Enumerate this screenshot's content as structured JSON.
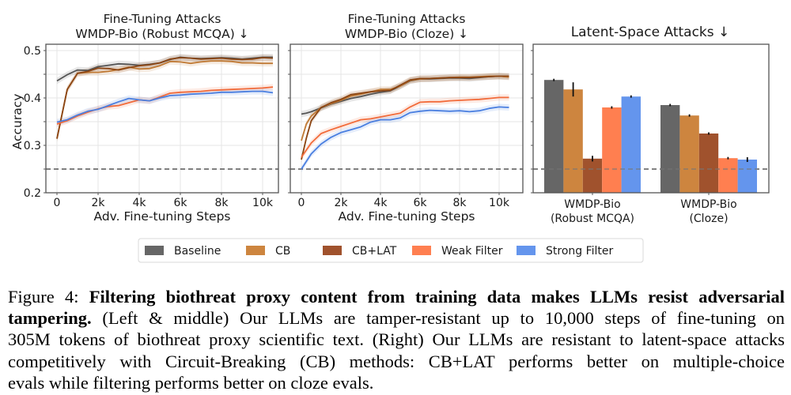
{
  "chart_data": [
    {
      "type": "line",
      "title": "Fine-Tuning Attacks\nWMDP-Bio (Robust MCQA) ↓",
      "title_lines": [
        "Fine-Tuning Attacks",
        "WMDP-Bio (Robust MCQA) ↓"
      ],
      "xlabel": "Adv. Fine-tuning Steps",
      "ylabel": "Accuracy",
      "xlim": [
        -500,
        11000
      ],
      "ylim": [
        0.2,
        0.52
      ],
      "xticks": [
        0,
        2000,
        4000,
        6000,
        8000,
        10000
      ],
      "xtick_labels": [
        "0",
        "2k",
        "4k",
        "6k",
        "8k",
        "10k"
      ],
      "yticks": [
        0.2,
        0.3,
        0.4,
        0.5
      ],
      "ytick_labels": [
        "0.2",
        "0.3",
        "0.4",
        "0.5"
      ],
      "reference_line": 0.25,
      "grid": true,
      "x": [
        0,
        500,
        1000,
        1500,
        2000,
        2500,
        3000,
        3500,
        4000,
        4500,
        5000,
        5500,
        6000,
        6500,
        7000,
        7500,
        8000,
        8500,
        9000,
        9500,
        10000,
        10500
      ],
      "series": [
        {
          "name": "Baseline",
          "values": [
            0.436,
            0.449,
            0.459,
            0.458,
            0.466,
            0.469,
            0.472,
            0.471,
            0.469,
            0.471,
            0.474,
            0.481,
            0.486,
            0.484,
            0.483,
            0.484,
            0.485,
            0.484,
            0.482,
            0.484,
            0.486,
            0.486
          ]
        },
        {
          "name": "CB",
          "values": [
            0.314,
            0.418,
            0.452,
            0.454,
            0.454,
            0.456,
            0.46,
            0.465,
            0.461,
            0.462,
            0.468,
            0.477,
            0.476,
            0.473,
            0.476,
            0.478,
            0.478,
            0.477,
            0.474,
            0.474,
            0.473,
            0.473
          ]
        },
        {
          "name": "CB+LAT",
          "values": [
            0.314,
            0.418,
            0.452,
            0.456,
            0.463,
            0.462,
            0.459,
            0.464,
            0.468,
            0.47,
            0.474,
            0.482,
            0.485,
            0.484,
            0.482,
            0.483,
            0.484,
            0.482,
            0.481,
            0.482,
            0.485,
            0.484
          ]
        },
        {
          "name": "Weak Filter",
          "values": [
            0.345,
            0.352,
            0.362,
            0.37,
            0.377,
            0.382,
            0.384,
            0.39,
            0.396,
            0.394,
            0.402,
            0.41,
            0.412,
            0.413,
            0.414,
            0.416,
            0.417,
            0.418,
            0.419,
            0.42,
            0.421,
            0.423
          ]
        },
        {
          "name": "Strong Filter",
          "values": [
            0.349,
            0.354,
            0.364,
            0.372,
            0.376,
            0.384,
            0.392,
            0.399,
            0.396,
            0.394,
            0.4,
            0.405,
            0.406,
            0.408,
            0.409,
            0.41,
            0.412,
            0.412,
            0.413,
            0.414,
            0.414,
            0.411
          ]
        }
      ]
    },
    {
      "type": "line",
      "title": "Fine-Tuning Attacks\nWMDP-Bio (Cloze) ↓",
      "title_lines": [
        "Fine-Tuning Attacks",
        "WMDP-Bio (Cloze) ↓"
      ],
      "xlabel": "Adv. Fine-tuning Steps",
      "ylabel": "",
      "xlim": [
        -500,
        11000
      ],
      "ylim": [
        0.2,
        0.52
      ],
      "xticks": [
        0,
        2000,
        4000,
        6000,
        8000,
        10000
      ],
      "xtick_labels": [
        "0",
        "2k",
        "4k",
        "6k",
        "8k",
        "10k"
      ],
      "yticks": [
        0.2,
        0.3,
        0.4,
        0.5
      ],
      "ytick_labels": [
        "",
        "",
        "",
        ""
      ],
      "reference_line": 0.25,
      "grid": true,
      "x": [
        0,
        250,
        500,
        1000,
        1500,
        2000,
        2500,
        3000,
        3500,
        4000,
        4500,
        5000,
        5500,
        6000,
        6500,
        7000,
        7500,
        8000,
        8500,
        9000,
        9500,
        10000,
        10500
      ],
      "series": [
        {
          "name": "Baseline",
          "values": [
            0.366,
            0.368,
            0.371,
            0.379,
            0.387,
            0.393,
            0.399,
            0.403,
            0.408,
            0.412,
            0.415,
            0.425,
            0.436,
            0.44,
            0.44,
            0.441,
            0.442,
            0.442,
            0.441,
            0.443,
            0.445,
            0.446,
            0.445
          ]
        },
        {
          "name": "CB",
          "values": [
            0.31,
            0.345,
            0.362,
            0.38,
            0.388,
            0.395,
            0.404,
            0.408,
            0.413,
            0.418,
            0.418,
            0.425,
            0.437,
            0.44,
            0.441,
            0.442,
            0.443,
            0.444,
            0.444,
            0.445,
            0.446,
            0.446,
            0.444
          ]
        },
        {
          "name": "CB+LAT",
          "values": [
            0.27,
            0.315,
            0.352,
            0.38,
            0.39,
            0.397,
            0.407,
            0.41,
            0.413,
            0.415,
            0.416,
            0.427,
            0.438,
            0.441,
            0.441,
            0.442,
            0.443,
            0.443,
            0.443,
            0.444,
            0.445,
            0.446,
            0.446
          ]
        },
        {
          "name": "Weak Filter",
          "values": [
            0.275,
            0.29,
            0.305,
            0.325,
            0.333,
            0.34,
            0.347,
            0.354,
            0.356,
            0.36,
            0.364,
            0.368,
            0.381,
            0.391,
            0.392,
            0.392,
            0.394,
            0.395,
            0.396,
            0.397,
            0.399,
            0.401,
            0.401
          ]
        },
        {
          "name": "Strong Filter",
          "values": [
            0.25,
            0.266,
            0.282,
            0.303,
            0.317,
            0.327,
            0.333,
            0.339,
            0.349,
            0.354,
            0.354,
            0.358,
            0.369,
            0.372,
            0.374,
            0.373,
            0.372,
            0.373,
            0.371,
            0.373,
            0.378,
            0.381,
            0.38
          ]
        }
      ]
    },
    {
      "type": "bar",
      "title": "Latent-Space Attacks ↓",
      "xlabel": "",
      "ylabel": "",
      "ylim": [
        0.2,
        0.52
      ],
      "yticks": [
        0.2,
        0.3,
        0.4,
        0.5
      ],
      "reference_line": 0.25,
      "categories": [
        "WMDP-Bio\n(Robust MCQA)",
        "WMDP-Bio\n(Cloze)"
      ],
      "category_lines": [
        [
          "WMDP-Bio",
          "(Robust MCQA)"
        ],
        [
          "WMDP-Bio",
          "(Cloze)"
        ]
      ],
      "series": [
        {
          "name": "Baseline",
          "values": [
            0.438,
            0.385
          ],
          "errors": [
            0.001,
            0.001
          ]
        },
        {
          "name": "CB",
          "values": [
            0.418,
            0.363
          ],
          "errors": [
            0.015,
            0.001
          ]
        },
        {
          "name": "CB+LAT",
          "values": [
            0.272,
            0.325
          ],
          "errors": [
            0.006,
            0.001
          ]
        },
        {
          "name": "Weak Filter",
          "values": [
            0.38,
            0.273
          ],
          "errors": [
            0.002,
            0.001
          ]
        },
        {
          "name": "Strong Filter",
          "values": [
            0.403,
            0.27
          ],
          "errors": [
            0.001,
            0.005
          ]
        }
      ]
    }
  ],
  "legend": {
    "placement": "bottom-center",
    "items": [
      {
        "label": "Baseline",
        "color": "#666666"
      },
      {
        "label": "CB",
        "color": "#cd853f"
      },
      {
        "label": "CB+LAT",
        "color": "#a0522d"
      },
      {
        "label": "Weak Filter",
        "color": "#ff7f50"
      },
      {
        "label": "Strong Filter",
        "color": "#6495ed"
      }
    ]
  },
  "line_colors": {
    "Baseline": "#555555",
    "CB": "#c07a35",
    "CB+LAT": "#8b4513",
    "Weak Filter": "#f26b3a",
    "Strong Filter": "#4a7fe0"
  },
  "caption": {
    "lines": [
      {
        "label": "Figure 4: ",
        "bold": "Filtering biothreat proxy content from training data makes LLMs resist adversarial",
        "text": ""
      },
      {
        "label": "",
        "bold": "tampering.",
        "text": " (Left & middle) Our LLMs are tamper-resistant up to 10,000 steps of fine-tuning on"
      },
      {
        "label": "",
        "bold": "",
        "text": "305M tokens of biothreat proxy scientific text. (Right) Our LLMs are resistant to latent-space attacks"
      },
      {
        "label": "",
        "bold": "",
        "text": "competitively with Circuit-Breaking (CB) methods: CB+LAT performs better on multiple-choice"
      },
      {
        "label": "",
        "bold": "",
        "text": "evals while filtering performs better on cloze evals."
      }
    ]
  }
}
